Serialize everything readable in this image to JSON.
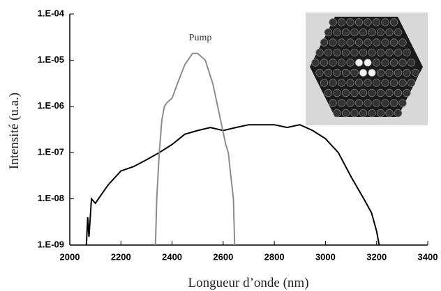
{
  "chart_data": {
    "type": "line",
    "log_y": true,
    "x_label": "Longueur d’onde (nm)",
    "y_label": "Intensité (u.a.)",
    "annotation": "Pump",
    "xlim": [
      2000,
      3400
    ],
    "xticks": [
      2000,
      2200,
      2400,
      2600,
      2800,
      3000,
      3200,
      3400
    ],
    "ylim": [
      1e-09,
      0.0001
    ],
    "yticks": [
      {
        "value": 1e-09,
        "label": "1.E-09"
      },
      {
        "value": 1e-08,
        "label": "1.E-08"
      },
      {
        "value": 1e-07,
        "label": "1.E-07"
      },
      {
        "value": 1e-06,
        "label": "1.E-06"
      },
      {
        "value": 1e-05,
        "label": "1.E-05"
      },
      {
        "value": 0.0001,
        "label": "1.E-04"
      }
    ],
    "series": [
      {
        "color": "#000000",
        "x": [
          2065,
          2070,
          2075,
          2085,
          2100,
          2150,
          2200,
          2250,
          2300,
          2350,
          2400,
          2450,
          2500,
          2550,
          2600,
          2650,
          2700,
          2750,
          2800,
          2850,
          2900,
          2950,
          3000,
          3050,
          3100,
          3150,
          3180,
          3200,
          3210
        ],
        "values": [
          1e-09,
          4e-09,
          1.5e-09,
          1e-08,
          8e-09,
          2e-08,
          4e-08,
          5e-08,
          7e-08,
          1e-07,
          1.5e-07,
          2.5e-07,
          3e-07,
          3.5e-07,
          3e-07,
          3.5e-07,
          4e-07,
          4e-07,
          4e-07,
          3.5e-07,
          4e-07,
          3e-07,
          2e-07,
          1e-07,
          3e-08,
          1e-08,
          5e-09,
          2e-09,
          1e-09
        ]
      },
      {
        "color": "#8c8c8c",
        "x": [
          2335,
          2340,
          2350,
          2360,
          2370,
          2380,
          2400,
          2420,
          2450,
          2480,
          2500,
          2530,
          2560,
          2590,
          2610,
          2620,
          2630,
          2640,
          2645
        ],
        "values": [
          1e-09,
          1e-08,
          1e-07,
          5e-07,
          1e-06,
          1.2e-06,
          1.5e-06,
          3e-06,
          8e-06,
          1.4e-05,
          1.4e-05,
          1e-05,
          3e-06,
          5e-07,
          1.5e-07,
          1e-07,
          3e-08,
          1e-08,
          1e-09
        ]
      }
    ]
  }
}
